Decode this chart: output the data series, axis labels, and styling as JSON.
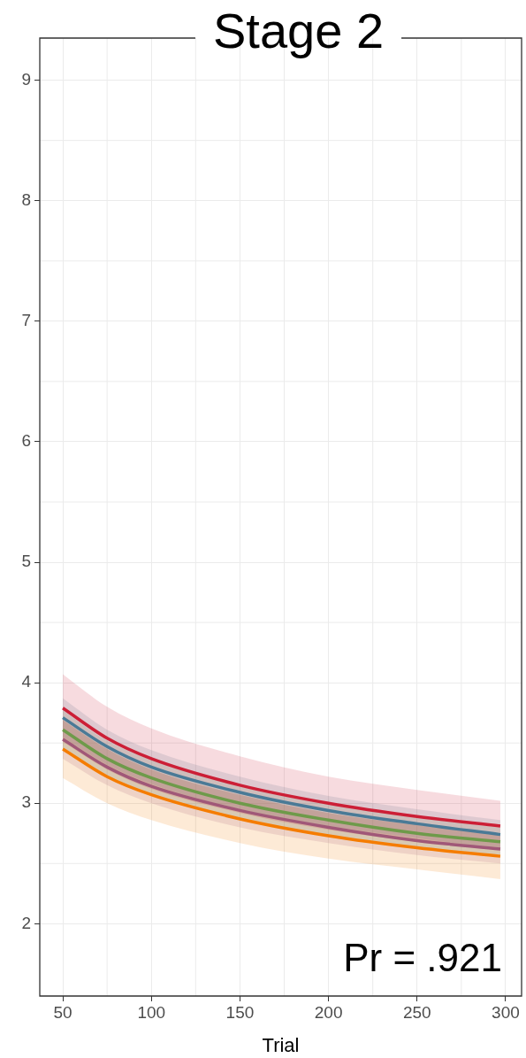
{
  "chart_data": {
    "type": "line",
    "title": "Stage 2",
    "xlabel": "Trial",
    "annotations": [
      "Pr = .921"
    ],
    "x": [
      50,
      75,
      100,
      150,
      200,
      250,
      297
    ],
    "series": [
      {
        "color": "#cc1f36",
        "values": [
          3.79,
          3.54,
          3.37,
          3.15,
          3.0,
          2.89,
          2.81
        ],
        "upper": [
          4.07,
          3.8,
          3.62,
          3.39,
          3.22,
          3.11,
          3.02
        ],
        "lower": [
          3.51,
          3.28,
          3.12,
          2.92,
          2.78,
          2.68,
          2.61
        ]
      },
      {
        "color": "#4a7a96",
        "values": [
          3.71,
          3.47,
          3.3,
          3.09,
          2.94,
          2.83,
          2.74
        ],
        "upper": [
          3.87,
          3.61,
          3.44,
          3.22,
          3.06,
          2.95,
          2.86
        ],
        "lower": [
          3.55,
          3.32,
          3.16,
          2.95,
          2.81,
          2.71,
          2.62
        ]
      },
      {
        "color": "#6e9a4a",
        "values": [
          3.61,
          3.37,
          3.21,
          3.0,
          2.86,
          2.75,
          2.68
        ],
        "upper": [
          3.77,
          3.52,
          3.36,
          3.14,
          2.99,
          2.88,
          2.8
        ],
        "lower": [
          3.45,
          3.22,
          3.07,
          2.87,
          2.73,
          2.63,
          2.56
        ]
      },
      {
        "color": "#a05878",
        "values": [
          3.53,
          3.3,
          3.14,
          2.94,
          2.8,
          2.69,
          2.62
        ],
        "upper": [
          3.69,
          3.45,
          3.28,
          3.07,
          2.92,
          2.82,
          2.74
        ],
        "lower": [
          3.37,
          3.15,
          3.0,
          2.8,
          2.67,
          2.57,
          2.5
        ]
      },
      {
        "color": "#f57c00",
        "values": [
          3.45,
          3.22,
          3.07,
          2.87,
          2.73,
          2.63,
          2.56
        ],
        "upper": [
          3.69,
          3.45,
          3.28,
          3.07,
          2.92,
          2.82,
          2.75
        ],
        "lower": [
          3.21,
          3.0,
          2.86,
          2.67,
          2.54,
          2.45,
          2.37
        ]
      }
    ],
    "xlim": [
      37,
      309
    ],
    "xticks": [
      50,
      100,
      150,
      200,
      250,
      300
    ],
    "ylim": [
      1.4,
      9.35
    ],
    "yticks": [
      2,
      3,
      4,
      5,
      6,
      7,
      8,
      9
    ],
    "grid": true,
    "legend": false,
    "marker": "none",
    "line_style": "solid"
  }
}
